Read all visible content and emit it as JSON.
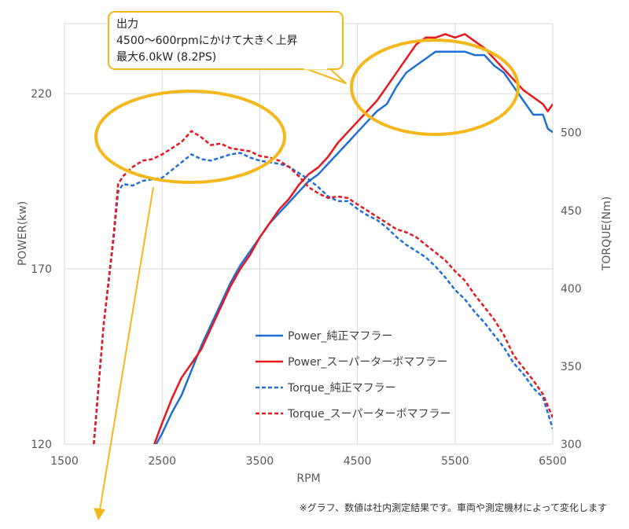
{
  "chart_data": {
    "type": "line",
    "xlabel": "RPM",
    "ylabel_left": "POWER(kw)",
    "ylabel_right": "TORQUE(Nm)",
    "xlim": [
      1500,
      6500
    ],
    "x_ticks": [
      1500,
      2500,
      3500,
      4500,
      5500,
      6500
    ],
    "ylim_left": [
      120,
      240
    ],
    "y_ticks_left": [
      120,
      170,
      220
    ],
    "ylim_right": [
      300,
      570
    ],
    "y_ticks_right": [
      300,
      350,
      400,
      450,
      500
    ],
    "grid": true,
    "legend_position": "center-right",
    "series": [
      {
        "name": "Power_純正マフラー",
        "axis": "left",
        "style": "solid",
        "color": "#1F6FD9",
        "points": [
          [
            2440,
            120
          ],
          [
            2500,
            123
          ],
          [
            2600,
            129
          ],
          [
            2700,
            134
          ],
          [
            2800,
            141
          ],
          [
            2900,
            148
          ],
          [
            3000,
            154
          ],
          [
            3100,
            160
          ],
          [
            3200,
            166
          ],
          [
            3300,
            171
          ],
          [
            3400,
            175
          ],
          [
            3500,
            179
          ],
          [
            3600,
            183
          ],
          [
            3700,
            186
          ],
          [
            3800,
            189
          ],
          [
            3900,
            192
          ],
          [
            4000,
            195
          ],
          [
            4100,
            197
          ],
          [
            4200,
            200
          ],
          [
            4300,
            203
          ],
          [
            4400,
            206
          ],
          [
            4500,
            209
          ],
          [
            4600,
            212
          ],
          [
            4700,
            215
          ],
          [
            4800,
            217
          ],
          [
            4900,
            222
          ],
          [
            5000,
            226
          ],
          [
            5100,
            228
          ],
          [
            5200,
            230
          ],
          [
            5300,
            232
          ],
          [
            5400,
            232
          ],
          [
            5500,
            232
          ],
          [
            5600,
            232
          ],
          [
            5700,
            231
          ],
          [
            5800,
            231
          ],
          [
            5900,
            228
          ],
          [
            6000,
            226
          ],
          [
            6100,
            222
          ],
          [
            6200,
            218
          ],
          [
            6300,
            214
          ],
          [
            6400,
            214
          ],
          [
            6450,
            210
          ],
          [
            6500,
            209
          ]
        ]
      },
      {
        "name": "Power_スーパーターボマフラー",
        "axis": "left",
        "style": "solid",
        "color": "#E8181F",
        "points": [
          [
            2420,
            120
          ],
          [
            2500,
            126
          ],
          [
            2600,
            133
          ],
          [
            2700,
            139
          ],
          [
            2800,
            143
          ],
          [
            2900,
            147
          ],
          [
            3000,
            153
          ],
          [
            3100,
            159
          ],
          [
            3200,
            165
          ],
          [
            3300,
            170
          ],
          [
            3400,
            174
          ],
          [
            3500,
            179
          ],
          [
            3600,
            183
          ],
          [
            3700,
            187
          ],
          [
            3800,
            190
          ],
          [
            3900,
            194
          ],
          [
            4000,
            197
          ],
          [
            4100,
            199
          ],
          [
            4200,
            202
          ],
          [
            4300,
            206
          ],
          [
            4400,
            209
          ],
          [
            4500,
            212
          ],
          [
            4600,
            215
          ],
          [
            4700,
            218
          ],
          [
            4800,
            222
          ],
          [
            4900,
            226
          ],
          [
            5000,
            230
          ],
          [
            5100,
            234
          ],
          [
            5200,
            236
          ],
          [
            5300,
            236
          ],
          [
            5400,
            237
          ],
          [
            5500,
            236
          ],
          [
            5600,
            237
          ],
          [
            5700,
            235
          ],
          [
            5800,
            233
          ],
          [
            5900,
            230
          ],
          [
            6000,
            227
          ],
          [
            6100,
            224
          ],
          [
            6200,
            221
          ],
          [
            6300,
            219
          ],
          [
            6400,
            217
          ],
          [
            6450,
            215
          ],
          [
            6500,
            217
          ]
        ]
      },
      {
        "name": "Torque_純正マフラー",
        "axis": "right",
        "style": "dashed",
        "color": "#1F6FD9",
        "points": [
          [
            1800,
            300
          ],
          [
            1900,
            376
          ],
          [
            2000,
            430
          ],
          [
            2050,
            462
          ],
          [
            2100,
            467
          ],
          [
            2200,
            466
          ],
          [
            2300,
            469
          ],
          [
            2400,
            470
          ],
          [
            2500,
            471
          ],
          [
            2600,
            476
          ],
          [
            2700,
            481
          ],
          [
            2800,
            486
          ],
          [
            2900,
            483
          ],
          [
            3000,
            482
          ],
          [
            3100,
            484
          ],
          [
            3200,
            486
          ],
          [
            3300,
            487
          ],
          [
            3400,
            484
          ],
          [
            3500,
            482
          ],
          [
            3600,
            481
          ],
          [
            3700,
            480
          ],
          [
            3800,
            478
          ],
          [
            3900,
            474
          ],
          [
            4000,
            470
          ],
          [
            4100,
            465
          ],
          [
            4200,
            459
          ],
          [
            4300,
            456
          ],
          [
            4400,
            456
          ],
          [
            4500,
            451
          ],
          [
            4600,
            447
          ],
          [
            4700,
            444
          ],
          [
            4800,
            439
          ],
          [
            4900,
            433
          ],
          [
            5000,
            428
          ],
          [
            5100,
            424
          ],
          [
            5200,
            420
          ],
          [
            5300,
            414
          ],
          [
            5400,
            407
          ],
          [
            5500,
            399
          ],
          [
            5600,
            393
          ],
          [
            5700,
            385
          ],
          [
            5800,
            378
          ],
          [
            5900,
            370
          ],
          [
            6000,
            362
          ],
          [
            6100,
            352
          ],
          [
            6200,
            345
          ],
          [
            6300,
            336
          ],
          [
            6400,
            330
          ],
          [
            6500,
            310
          ]
        ]
      },
      {
        "name": "Torque_スーパーターボマフラー",
        "axis": "right",
        "style": "dashed",
        "color": "#E8181F",
        "points": [
          [
            1800,
            300
          ],
          [
            1900,
            376
          ],
          [
            2000,
            432
          ],
          [
            2050,
            467
          ],
          [
            2100,
            472
          ],
          [
            2200,
            478
          ],
          [
            2300,
            482
          ],
          [
            2400,
            483
          ],
          [
            2500,
            486
          ],
          [
            2600,
            490
          ],
          [
            2700,
            494
          ],
          [
            2800,
            501
          ],
          [
            2900,
            497
          ],
          [
            3000,
            492
          ],
          [
            3100,
            493
          ],
          [
            3200,
            490
          ],
          [
            3300,
            489
          ],
          [
            3400,
            488
          ],
          [
            3500,
            485
          ],
          [
            3600,
            484
          ],
          [
            3700,
            482
          ],
          [
            3800,
            478
          ],
          [
            3900,
            472
          ],
          [
            4000,
            465
          ],
          [
            4100,
            461
          ],
          [
            4200,
            458
          ],
          [
            4300,
            459
          ],
          [
            4400,
            458
          ],
          [
            4500,
            454
          ],
          [
            4600,
            450
          ],
          [
            4700,
            446
          ],
          [
            4800,
            442
          ],
          [
            4900,
            438
          ],
          [
            5000,
            436
          ],
          [
            5100,
            433
          ],
          [
            5200,
            428
          ],
          [
            5300,
            423
          ],
          [
            5400,
            418
          ],
          [
            5500,
            411
          ],
          [
            5600,
            405
          ],
          [
            5700,
            396
          ],
          [
            5800,
            388
          ],
          [
            5900,
            380
          ],
          [
            6000,
            370
          ],
          [
            6100,
            357
          ],
          [
            6200,
            349
          ],
          [
            6300,
            341
          ],
          [
            6400,
            332
          ],
          [
            6500,
            317
          ]
        ]
      }
    ],
    "annotation": {
      "lines": [
        "出力",
        "4500～600rpmにかけて大きく上昇",
        "最大6.0kW (8.2PS)"
      ]
    }
  },
  "footnote": "※グラフ、数値は社内測定結果です。車両や測定機材によって変化します"
}
